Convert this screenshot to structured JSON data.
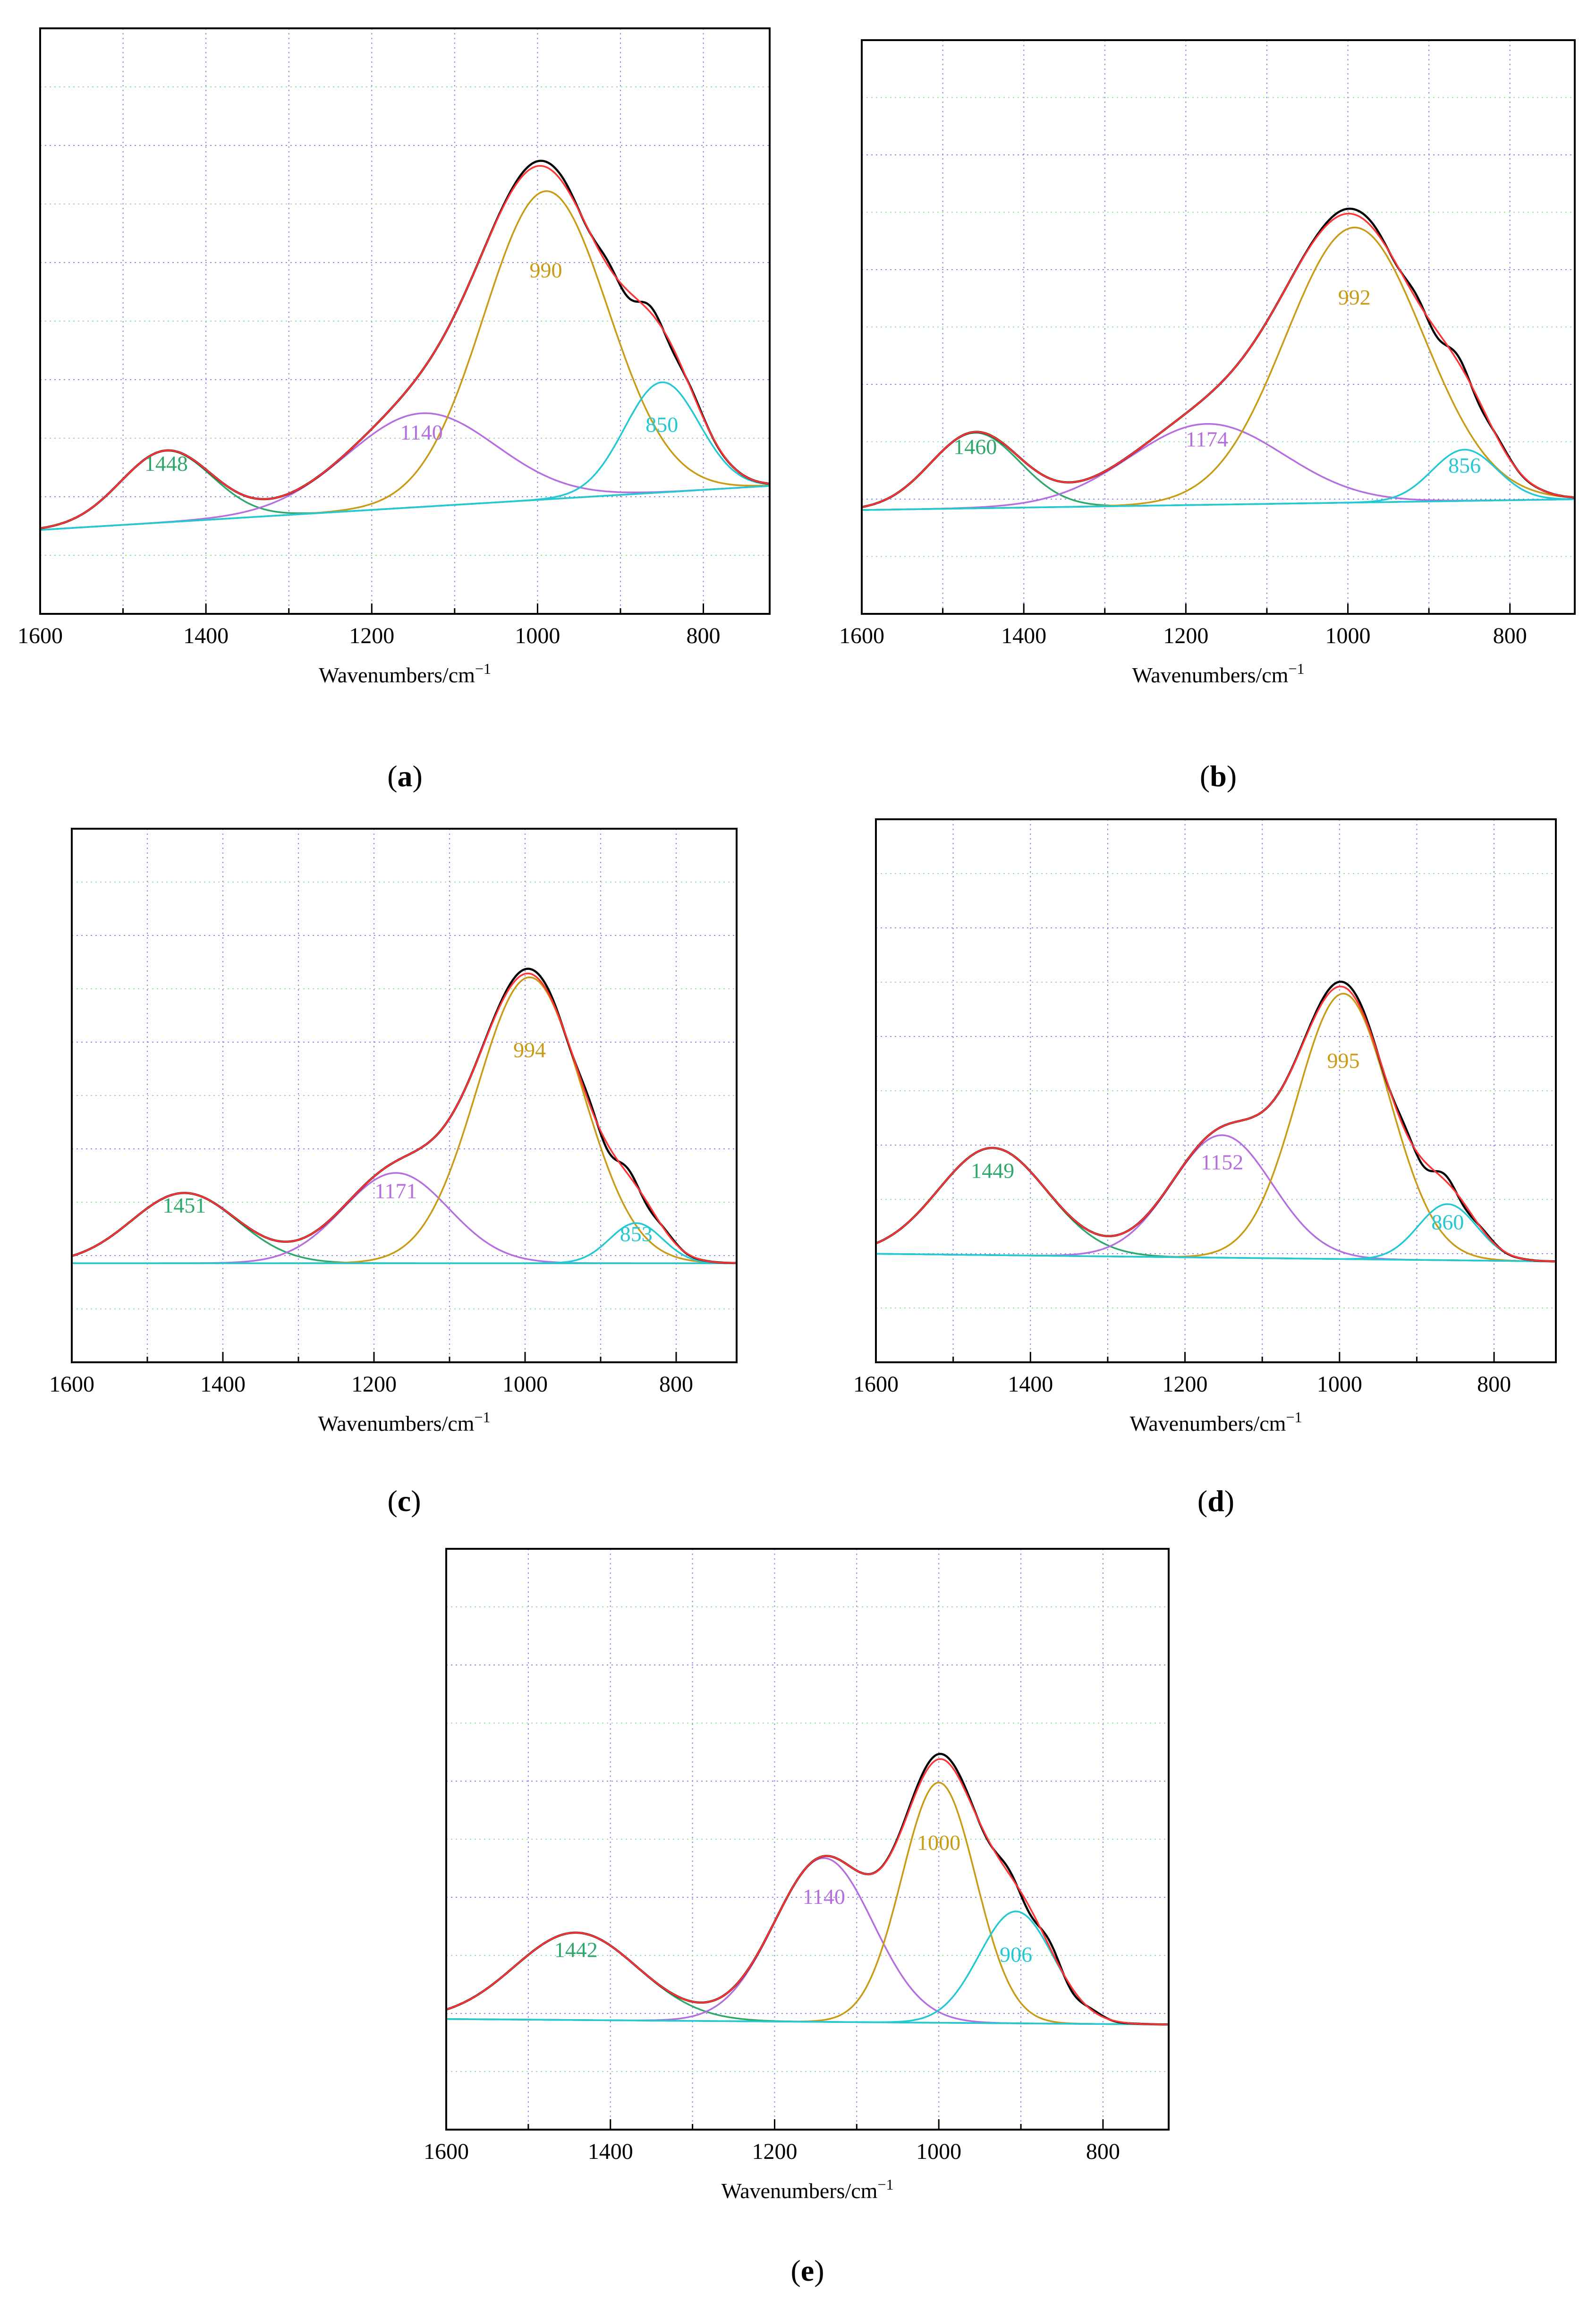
{
  "figure": {
    "colors": {
      "measured": "#000000",
      "fit": "#ff3333",
      "band_1400": "#2ea86a",
      "band_1150": "#b46ee0",
      "band_1000": "#c99a14",
      "band_850": "#22c8d2",
      "grid_major": "#8a8ae6",
      "grid_minor": "#9be39b"
    }
  },
  "chart_data": [
    {
      "type": "line",
      "panel": "(a)",
      "panel_letter": "a",
      "xlabel": "Wavenumbers/cm",
      "xlabel_sup": "−1",
      "xlim": [
        1600,
        720
      ],
      "xticks": [
        1600,
        1400,
        1200,
        1000,
        800
      ],
      "ylim": [
        0,
        1
      ],
      "baseline": [
        0.11,
        0.19
      ],
      "measured_extra": [
        0,
        0.012
      ],
      "peaks": [
        {
          "label": "1448",
          "center": 1448,
          "height": 0.13,
          "width": 55,
          "role": "band_1400"
        },
        {
          "label": "1140",
          "center": 1140,
          "height": 0.17,
          "width": 90,
          "role": "band_1150"
        },
        {
          "label": "990",
          "center": 990,
          "height": 0.56,
          "width": 75,
          "role": "band_1000"
        },
        {
          "label": "850",
          "center": 850,
          "height": 0.2,
          "width": 45,
          "role": "band_850"
        }
      ]
    },
    {
      "type": "line",
      "panel": "(b)",
      "panel_letter": "b",
      "xlabel": "Wavenumbers/cm",
      "xlabel_sup": "−1",
      "xlim": [
        1600,
        720
      ],
      "xticks": [
        1600,
        1400,
        1200,
        1000,
        800
      ],
      "ylim": [
        0,
        1
      ],
      "baseline": [
        0.15,
        0.17
      ],
      "measured_extra": [
        0,
        0.012
      ],
      "peaks": [
        {
          "label": "1460",
          "center": 1460,
          "height": 0.14,
          "width": 55,
          "role": "band_1400"
        },
        {
          "label": "1174",
          "center": 1174,
          "height": 0.15,
          "width": 95,
          "role": "band_1150"
        },
        {
          "label": "992",
          "center": 992,
          "height": 0.51,
          "width": 85,
          "role": "band_1000"
        },
        {
          "label": "856",
          "center": 856,
          "height": 0.095,
          "width": 40,
          "role": "band_850"
        }
      ]
    },
    {
      "type": "line",
      "panel": "(c)",
      "panel_letter": "c",
      "xlabel": "Wavenumbers/cm",
      "xlabel_sup": "−1",
      "xlim": [
        1600,
        720
      ],
      "xticks": [
        1600,
        1400,
        1200,
        1000,
        800
      ],
      "ylim": [
        0,
        1
      ],
      "baseline": [
        0.155,
        0.155
      ],
      "measured_extra": [
        0,
        0.012
      ],
      "peaks": [
        {
          "label": "1451",
          "center": 1451,
          "height": 0.14,
          "width": 70,
          "role": "band_1400"
        },
        {
          "label": "1171",
          "center": 1171,
          "height": 0.18,
          "width": 70,
          "role": "band_1150"
        },
        {
          "label": "994",
          "center": 994,
          "height": 0.57,
          "width": 70,
          "role": "band_1000"
        },
        {
          "label": "853",
          "center": 853,
          "height": 0.08,
          "width": 35,
          "role": "band_850"
        }
      ]
    },
    {
      "type": "line",
      "panel": "(d)",
      "panel_letter": "d",
      "xlabel": "Wavenumbers/cm",
      "xlabel_sup": "−1",
      "xlim": [
        1600,
        720
      ],
      "xticks": [
        1600,
        1400,
        1200,
        1000,
        800
      ],
      "ylim": [
        0,
        1
      ],
      "baseline": [
        0.17,
        0.155
      ],
      "measured_extra": [
        0,
        0.012
      ],
      "peaks": [
        {
          "label": "1449",
          "center": 1449,
          "height": 0.21,
          "width": 70,
          "role": "band_1400"
        },
        {
          "label": "1152",
          "center": 1152,
          "height": 0.24,
          "width": 65,
          "role": "band_1150"
        },
        {
          "label": "995",
          "center": 995,
          "height": 0.52,
          "width": 60,
          "role": "band_1000"
        },
        {
          "label": "860",
          "center": 860,
          "height": 0.11,
          "width": 38,
          "role": "band_850"
        }
      ]
    },
    {
      "type": "line",
      "panel": "(e)",
      "panel_letter": "e",
      "xlabel": "Wavenumbers/cm",
      "xlabel_sup": "−1",
      "xlim": [
        1600,
        720
      ],
      "xticks": [
        1600,
        1400,
        1200,
        1000,
        800
      ],
      "ylim": [
        0,
        1
      ],
      "baseline": [
        0.16,
        0.15
      ],
      "measured_extra": [
        0,
        0.012
      ],
      "peaks": [
        {
          "label": "1442",
          "center": 1442,
          "height": 0.16,
          "width": 75,
          "role": "band_1400"
        },
        {
          "label": "1140",
          "center": 1140,
          "height": 0.3,
          "width": 60,
          "role": "band_1150"
        },
        {
          "label": "1000",
          "center": 1000,
          "height": 0.44,
          "width": 45,
          "role": "band_1000"
        },
        {
          "label": "906",
          "center": 906,
          "height": 0.205,
          "width": 45,
          "role": "band_850"
        }
      ]
    }
  ]
}
